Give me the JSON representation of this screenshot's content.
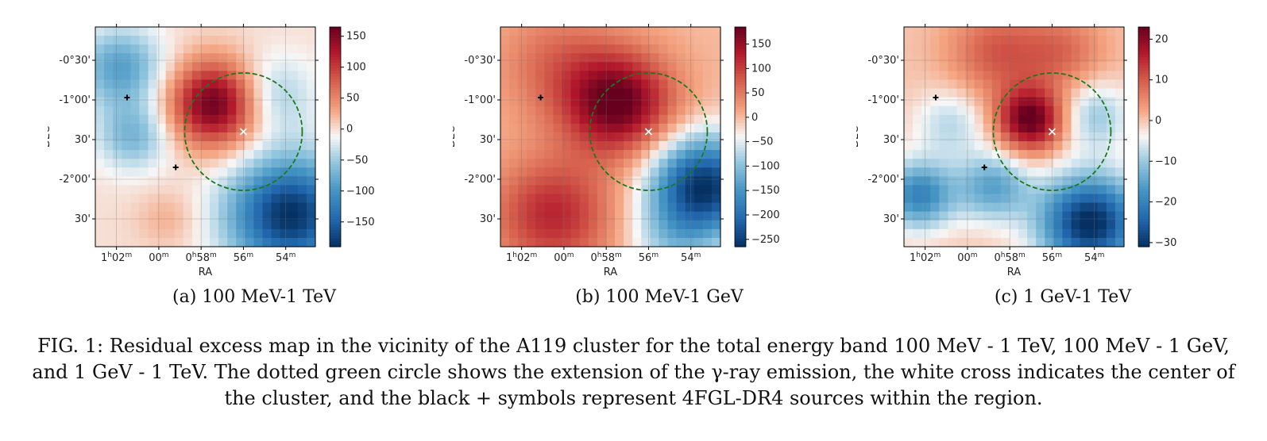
{
  "chart_data": [
    {
      "type": "heatmap",
      "caption": "(a) 100 MeV-1 TeV",
      "xlabel": "RA",
      "ylabel": "DEC",
      "xticks": [
        "1h02m",
        "00m",
        "0h58m",
        "56m",
        "54m"
      ],
      "yticks": [
        "-0°30'",
        "-1°00'",
        "30'",
        "-2°00'",
        "30'"
      ],
      "colorbar": {
        "range": [
          -190,
          165
        ],
        "ticks": [
          150,
          100,
          50,
          0,
          -50,
          -100,
          -150
        ]
      },
      "blobs": [
        {
          "ra": 57.3,
          "dec": -1.05,
          "amp": 170,
          "sigma": 0.38
        },
        {
          "ra": 53.8,
          "dec": -2.45,
          "amp": -190,
          "sigma": 0.5
        },
        {
          "ra": 61.8,
          "dec": -0.6,
          "amp": -90,
          "sigma": 0.35
        },
        {
          "ra": 61.2,
          "dec": -1.45,
          "amp": -70,
          "sigma": 0.3
        },
        {
          "ra": 54.8,
          "dec": -0.95,
          "amp": -60,
          "sigma": 0.35
        },
        {
          "ra": 59.6,
          "dec": -2.5,
          "amp": 25,
          "sigma": 0.25
        }
      ],
      "circle": {
        "ra": 56.0,
        "dec": -1.4,
        "radius_deg": 0.74
      },
      "cluster_center": {
        "ra": 56.0,
        "dec": -1.4
      },
      "sources": [
        {
          "ra": 61.5,
          "dec": -0.97
        },
        {
          "ra": 59.2,
          "dec": -1.85
        }
      ]
    },
    {
      "type": "heatmap",
      "caption": "(b) 100 MeV-1 GeV",
      "xlabel": "RA",
      "ylabel": "DEC",
      "xticks": [
        "1h02m",
        "00m",
        "0h58m",
        "56m",
        "54m"
      ],
      "yticks": [
        "-0°30'",
        "-1°00'",
        "30'",
        "-2°00'",
        "30'"
      ],
      "colorbar": {
        "range": [
          -265,
          185
        ],
        "ticks": [
          150,
          100,
          50,
          0,
          -50,
          -100,
          -150,
          -200,
          -250
        ]
      },
      "blobs": [
        {
          "ra": 57.4,
          "dec": -1.05,
          "amp": 185,
          "sigma": 0.45
        },
        {
          "ra": 53.4,
          "dec": -2.1,
          "amp": -265,
          "sigma": 0.45
        },
        {
          "ra": 60.5,
          "dec": -2.45,
          "amp": 120,
          "sigma": 0.5
        },
        {
          "ra": 60.3,
          "dec": -0.55,
          "amp": 60,
          "sigma": 0.5
        },
        {
          "ra": 55.0,
          "dec": -2.8,
          "amp": -60,
          "sigma": 0.35
        }
      ],
      "circle": {
        "ra": 56.0,
        "dec": -1.4,
        "radius_deg": 0.74
      },
      "cluster_center": {
        "ra": 56.0,
        "dec": -1.4
      },
      "sources": [
        {
          "ra": 61.1,
          "dec": -0.97
        }
      ]
    },
    {
      "type": "heatmap",
      "caption": "(c) 1 GeV-1 TeV",
      "xlabel": "RA",
      "ylabel": "DEC",
      "xticks": [
        "1h02m",
        "00m",
        "0h58m",
        "56m",
        "54m"
      ],
      "yticks": [
        "-0°30'",
        "-1°00'",
        "30'",
        "-2°00'",
        "30'"
      ],
      "colorbar": {
        "range": [
          -31,
          23
        ],
        "ticks": [
          20,
          10,
          0,
          -10,
          -20,
          -30
        ]
      },
      "blobs": [
        {
          "ra": 57.0,
          "dec": -1.25,
          "amp": 24,
          "sigma": 0.28
        },
        {
          "ra": 54.2,
          "dec": -2.55,
          "amp": -32,
          "sigma": 0.42
        },
        {
          "ra": 58.6,
          "dec": -0.4,
          "amp": 10,
          "sigma": 0.4
        },
        {
          "ra": 55.5,
          "dec": -0.4,
          "amp": 8,
          "sigma": 0.35
        },
        {
          "ra": 62.3,
          "dec": -2.2,
          "amp": -20,
          "sigma": 0.3
        },
        {
          "ra": 58.8,
          "dec": -2.1,
          "amp": -15,
          "sigma": 0.3
        },
        {
          "ra": 54.0,
          "dec": -1.2,
          "amp": -10,
          "sigma": 0.3
        },
        {
          "ra": 60.8,
          "dec": -1.3,
          "amp": -8,
          "sigma": 0.3
        }
      ],
      "circle": {
        "ra": 56.0,
        "dec": -1.4,
        "radius_deg": 0.74
      },
      "cluster_center": {
        "ra": 56.0,
        "dec": -1.4
      },
      "sources": [
        {
          "ra": 61.5,
          "dec": -0.97
        },
        {
          "ra": 59.2,
          "dec": -1.85
        }
      ]
    }
  ],
  "caption": "FIG. 1: Residual excess map in the vicinity of the A119 cluster for the total energy band 100 MeV - 1 TeV, 100 MeV - 1 GeV, and 1 GeV - 1 TeV. The dotted green circle shows the extension of the γ-ray emission, the white cross indicates the center of the cluster, and the black + symbols represent 4FGL-DR4 sources within the region.",
  "colors": {
    "circle": "#1a7a1a",
    "cross": "#ffffff",
    "source": "#000000"
  }
}
